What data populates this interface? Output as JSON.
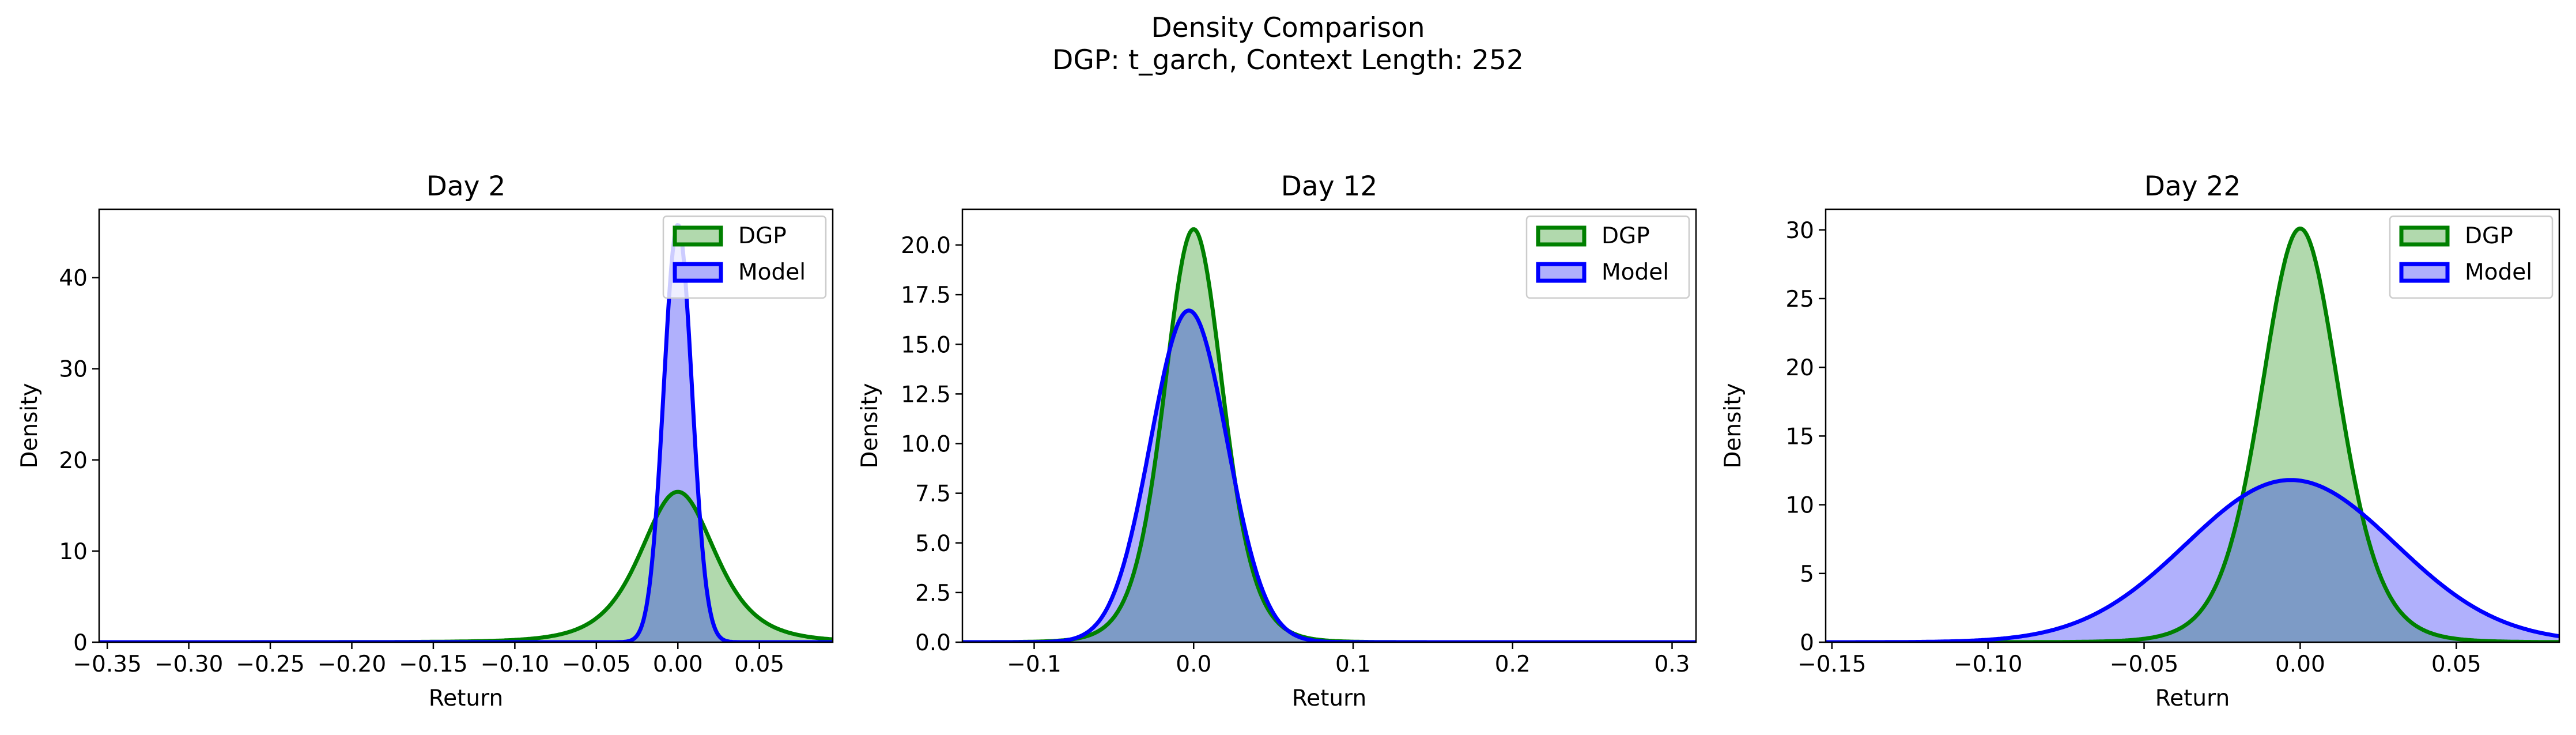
{
  "figure": {
    "title": "Density Comparison",
    "subtitle": "DGP: t_garch, Context Length: 252"
  },
  "colors": {
    "dgp_line": "#008000",
    "dgp_fill": "#b1d9ad",
    "model_line": "#0000ff",
    "model_fill": "#b0b0fc",
    "overlap_fill": "#7d9bc6"
  },
  "chart_data": [
    {
      "type": "area",
      "title": "Day 2",
      "xlabel": "Return",
      "ylabel": "Density",
      "xlim": [
        -0.355,
        0.095
      ],
      "ylim": [
        0,
        47.5
      ],
      "xticks": [
        -0.35,
        -0.3,
        -0.25,
        -0.2,
        -0.15,
        -0.1,
        -0.05,
        0.0,
        0.05
      ],
      "xtick_labels": [
        "−0.35",
        "−0.30",
        "−0.25",
        "−0.20",
        "−0.15",
        "−0.10",
        "−0.05",
        "0.00",
        "0.05"
      ],
      "yticks": [
        0,
        10,
        20,
        30,
        40
      ],
      "ytick_labels": [
        "0",
        "10",
        "20",
        "30",
        "40"
      ],
      "legend": "top-right",
      "grid": false,
      "series": [
        {
          "name": "DGP",
          "key": "dgp",
          "density": "t",
          "mu": 0.0,
          "sigma": 0.024,
          "df": 4,
          "peak": 16.5
        },
        {
          "name": "Model",
          "key": "model",
          "density": "gaussian",
          "mu": 0.0,
          "sigma": 0.0087,
          "peak": 45.8
        }
      ]
    },
    {
      "type": "area",
      "title": "Day 12",
      "xlabel": "Return",
      "ylabel": "Density",
      "xlim": [
        -0.145,
        0.315
      ],
      "ylim": [
        0,
        21.8
      ],
      "xticks": [
        -0.1,
        0.0,
        0.1,
        0.2,
        0.3
      ],
      "xtick_labels": [
        "−0.1",
        "0.0",
        "0.1",
        "0.2",
        "0.3"
      ],
      "yticks": [
        0,
        2.5,
        5,
        7.5,
        10,
        12.5,
        15,
        17.5,
        20
      ],
      "ytick_labels": [
        "0.0",
        "2.5",
        "5.0",
        "7.5",
        "10.0",
        "12.5",
        "15.0",
        "17.5",
        "20.0"
      ],
      "legend": "top-right",
      "grid": false,
      "series": [
        {
          "name": "DGP",
          "key": "dgp",
          "density": "t",
          "mu": 0.0,
          "sigma": 0.019,
          "df": 8,
          "peak": 20.8
        },
        {
          "name": "Model",
          "key": "model",
          "density": "gaussian",
          "mu": -0.003,
          "sigma": 0.024,
          "peak": 16.7
        }
      ]
    },
    {
      "type": "area",
      "title": "Day 22",
      "xlabel": "Return",
      "ylabel": "Density",
      "xlim": [
        -0.152,
        0.083
      ],
      "ylim": [
        0,
        31.5
      ],
      "xticks": [
        -0.15,
        -0.1,
        -0.05,
        0.0,
        0.05
      ],
      "xtick_labels": [
        "−0.15",
        "−0.10",
        "−0.05",
        "0.00",
        "0.05"
      ],
      "yticks": [
        0,
        5,
        10,
        15,
        20,
        25,
        30
      ],
      "ytick_labels": [
        "0",
        "5",
        "10",
        "15",
        "20",
        "25",
        "30"
      ],
      "legend": "top-right",
      "grid": false,
      "series": [
        {
          "name": "DGP",
          "key": "dgp",
          "density": "t",
          "mu": 0.0,
          "sigma": 0.0128,
          "df": 8,
          "peak": 30.1
        },
        {
          "name": "Model",
          "key": "model",
          "density": "gaussian",
          "mu": -0.003,
          "sigma": 0.0335,
          "peak": 11.8
        }
      ]
    }
  ]
}
